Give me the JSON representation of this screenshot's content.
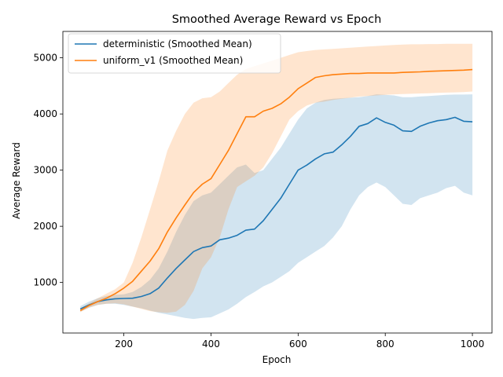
{
  "chart_data": {
    "type": "line",
    "title": "Smoothed Average Reward vs Epoch",
    "xlabel": "Epoch",
    "ylabel": "Average Reward",
    "xlim": [
      60,
      1045
    ],
    "ylim": [
      100,
      5470
    ],
    "xticks": [
      200,
      400,
      600,
      800,
      1000
    ],
    "yticks": [
      1000,
      2000,
      3000,
      4000,
      5000
    ],
    "grid": false,
    "legend_position": "top-left",
    "series": [
      {
        "name": "deterministic (Smoothed Mean)",
        "color": "#1f77b4",
        "band_color": "#1f77b4",
        "band_opacity": 0.2,
        "x": [
          100,
          120,
          140,
          160,
          180,
          200,
          220,
          240,
          260,
          280,
          300,
          320,
          340,
          360,
          380,
          400,
          420,
          440,
          460,
          480,
          500,
          520,
          540,
          560,
          580,
          600,
          620,
          640,
          660,
          680,
          700,
          720,
          740,
          760,
          780,
          800,
          820,
          840,
          860,
          880,
          900,
          920,
          940,
          960,
          980,
          1000
        ],
        "mean": [
          530,
          600,
          660,
          690,
          710,
          715,
          720,
          750,
          800,
          900,
          1080,
          1250,
          1400,
          1550,
          1620,
          1650,
          1760,
          1790,
          1840,
          1930,
          1950,
          2100,
          2300,
          2500,
          2750,
          3000,
          3090,
          3200,
          3290,
          3320,
          3450,
          3600,
          3780,
          3830,
          3930,
          3850,
          3800,
          3700,
          3690,
          3780,
          3840,
          3880,
          3900,
          3940,
          3870,
          3860
        ],
        "lower": [
          480,
          550,
          600,
          620,
          620,
          600,
          570,
          540,
          500,
          460,
          430,
          400,
          370,
          350,
          370,
          380,
          450,
          520,
          620,
          740,
          830,
          930,
          1000,
          1100,
          1200,
          1350,
          1450,
          1550,
          1650,
          1800,
          2000,
          2300,
          2550,
          2700,
          2780,
          2700,
          2550,
          2400,
          2380,
          2500,
          2550,
          2600,
          2680,
          2720,
          2600,
          2550
        ],
        "upper": [
          580,
          660,
          720,
          760,
          780,
          790,
          830,
          920,
          1050,
          1250,
          1550,
          1900,
          2200,
          2450,
          2550,
          2600,
          2750,
          2900,
          3050,
          3100,
          2950,
          3000,
          3200,
          3400,
          3650,
          3900,
          4100,
          4200,
          4250,
          4270,
          4280,
          4290,
          4300,
          4320,
          4350,
          4340,
          4330,
          4300,
          4300,
          4310,
          4320,
          4330,
          4340,
          4345,
          4345,
          4350
        ]
      },
      {
        "name": "uniform_v1 (Smoothed Mean)",
        "color": "#ff7f0e",
        "band_color": "#ff7f0e",
        "band_opacity": 0.2,
        "x": [
          100,
          120,
          140,
          160,
          180,
          200,
          220,
          240,
          260,
          280,
          300,
          320,
          340,
          360,
          380,
          400,
          420,
          440,
          460,
          480,
          500,
          520,
          540,
          560,
          580,
          600,
          620,
          640,
          660,
          680,
          700,
          720,
          740,
          760,
          780,
          800,
          820,
          840,
          860,
          880,
          900,
          920,
          940,
          960,
          980,
          1000
        ],
        "mean": [
          500,
          590,
          660,
          720,
          800,
          900,
          1020,
          1200,
          1380,
          1600,
          1900,
          2150,
          2380,
          2600,
          2750,
          2850,
          3100,
          3350,
          3650,
          3950,
          3950,
          4050,
          4100,
          4180,
          4300,
          4450,
          4550,
          4650,
          4680,
          4700,
          4710,
          4720,
          4720,
          4730,
          4730,
          4730,
          4730,
          4740,
          4745,
          4750,
          4760,
          4765,
          4770,
          4775,
          4780,
          4790
        ],
        "lower": [
          470,
          550,
          600,
          620,
          630,
          610,
          570,
          530,
          490,
          470,
          460,
          480,
          600,
          850,
          1250,
          1450,
          1800,
          2300,
          2700,
          2800,
          2900,
          3050,
          3300,
          3600,
          3900,
          4050,
          4150,
          4200,
          4220,
          4250,
          4270,
          4290,
          4310,
          4320,
          4330,
          4340,
          4350,
          4355,
          4360,
          4365,
          4370,
          4375,
          4380,
          4385,
          4390,
          4400
        ],
        "upper": [
          540,
          630,
          720,
          800,
          880,
          1000,
          1350,
          1800,
          2300,
          2800,
          3350,
          3700,
          4000,
          4200,
          4280,
          4300,
          4400,
          4550,
          4700,
          4800,
          4850,
          4900,
          4950,
          5000,
          5050,
          5100,
          5120,
          5140,
          5150,
          5160,
          5170,
          5180,
          5190,
          5200,
          5210,
          5220,
          5230,
          5235,
          5240,
          5240,
          5245,
          5245,
          5250,
          5250,
          5250,
          5250
        ]
      }
    ]
  }
}
